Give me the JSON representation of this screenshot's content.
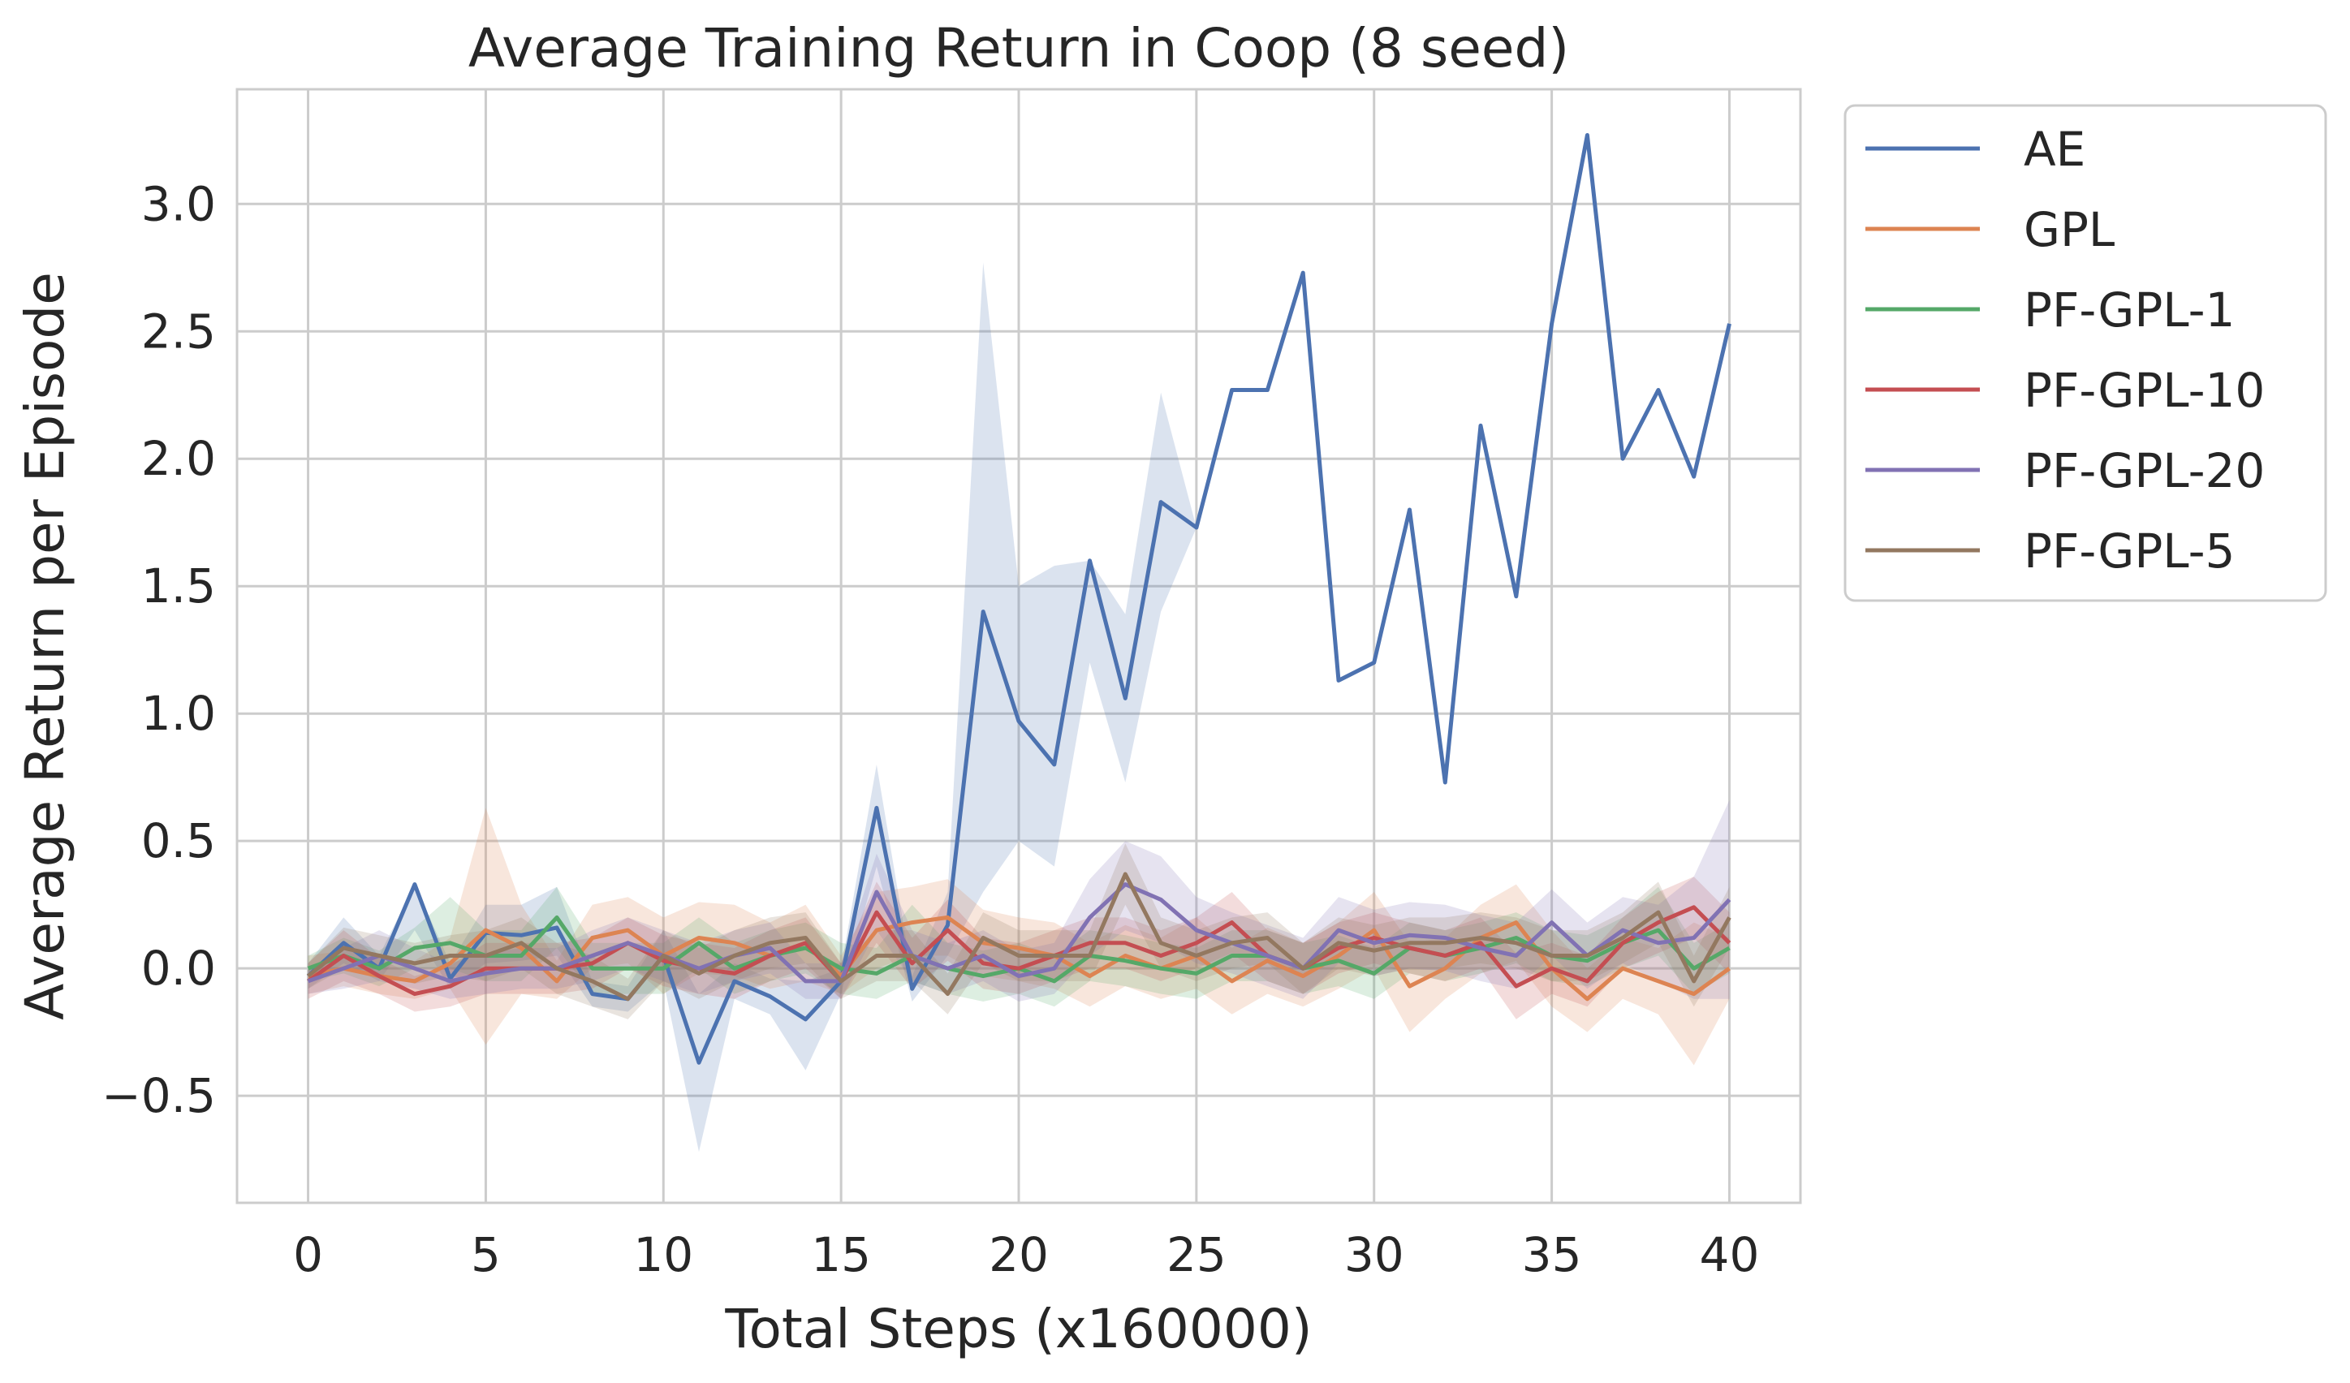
{
  "chart_data": {
    "type": "line",
    "title": "Average Training Return in Coop (8 seed)",
    "xlabel": "Total Steps (x160000)",
    "ylabel": "Average Return per Episode",
    "xlim": [
      -2,
      42
    ],
    "ylim": [
      -0.92,
      3.45
    ],
    "xticks": [
      0,
      5,
      10,
      15,
      20,
      25,
      30,
      35,
      40
    ],
    "xtick_labels": [
      "0",
      "5",
      "10",
      "15",
      "20",
      "25",
      "30",
      "35",
      "40"
    ],
    "yticks": [
      -0.5,
      0.0,
      0.5,
      1.0,
      1.5,
      2.0,
      2.5,
      3.0
    ],
    "ytick_labels": [
      "−0.5",
      "0.0",
      "0.5",
      "1.0",
      "1.5",
      "2.0",
      "2.5",
      "3.0"
    ],
    "grid": true,
    "legend_position": "outside-top-right",
    "x": [
      0,
      1,
      2,
      3,
      4,
      5,
      6,
      7,
      8,
      9,
      10,
      11,
      12,
      13,
      14,
      15,
      16,
      17,
      18,
      19,
      20,
      21,
      22,
      23,
      24,
      25,
      26,
      27,
      28,
      29,
      30,
      31,
      32,
      33,
      34,
      35,
      36,
      37,
      38,
      39,
      40
    ],
    "series": [
      {
        "name": "AE",
        "color": "#4c72b0",
        "values": [
          -0.03,
          0.1,
          0.0,
          0.33,
          -0.04,
          0.14,
          0.13,
          0.16,
          -0.1,
          -0.12,
          0.05,
          -0.37,
          -0.05,
          -0.11,
          -0.2,
          -0.05,
          0.63,
          -0.08,
          0.17,
          1.4,
          0.97,
          0.8,
          1.6,
          1.06,
          1.83,
          1.73,
          2.27,
          2.27,
          2.73,
          1.13,
          1.2,
          1.8,
          0.73,
          2.13,
          1.46,
          2.53,
          3.27,
          2.0,
          2.27,
          1.93,
          2.53
        ],
        "lower": [
          -0.08,
          0.02,
          -0.05,
          0.15,
          -0.08,
          0.02,
          0.03,
          0.05,
          -0.15,
          -0.17,
          -0.05,
          -0.72,
          -0.12,
          -0.18,
          -0.4,
          -0.1,
          0.4,
          -0.13,
          0.05,
          0.3,
          0.5,
          0.4,
          1.2,
          0.73,
          1.4,
          1.73,
          2.27,
          2.27,
          2.73,
          1.13,
          1.2,
          1.8,
          0.73,
          2.13,
          1.46,
          2.53,
          3.27,
          2.0,
          2.27,
          1.93,
          2.53
        ],
        "upper": [
          0.02,
          0.2,
          0.05,
          0.33,
          0.02,
          0.25,
          0.25,
          0.32,
          -0.05,
          -0.07,
          0.15,
          -0.1,
          0.02,
          -0.04,
          -0.05,
          0.0,
          0.8,
          -0.03,
          0.3,
          2.77,
          1.5,
          1.58,
          1.6,
          1.39,
          2.26,
          1.73,
          2.27,
          2.27,
          2.73,
          1.13,
          1.2,
          1.8,
          0.73,
          2.13,
          1.46,
          2.53,
          3.27,
          2.0,
          2.27,
          1.93,
          2.53
        ]
      },
      {
        "name": "GPL",
        "color": "#dd8452",
        "values": [
          -0.03,
          0.0,
          -0.03,
          -0.05,
          0.02,
          0.15,
          0.08,
          -0.05,
          0.12,
          0.15,
          0.05,
          0.12,
          0.1,
          0.05,
          0.1,
          -0.03,
          0.15,
          0.18,
          0.2,
          0.1,
          0.08,
          0.05,
          -0.03,
          0.05,
          0.0,
          0.05,
          -0.05,
          0.03,
          -0.03,
          0.05,
          0.15,
          -0.07,
          0.0,
          0.12,
          0.18,
          0.0,
          -0.12,
          0.0,
          -0.05,
          -0.1,
          0.0
        ],
        "lower": [
          -0.1,
          -0.07,
          -0.1,
          -0.12,
          -0.08,
          -0.3,
          -0.1,
          -0.12,
          0.0,
          0.02,
          -0.1,
          -0.02,
          -0.03,
          -0.08,
          -0.05,
          -0.1,
          0.0,
          0.05,
          0.05,
          -0.03,
          -0.05,
          -0.08,
          -0.15,
          -0.07,
          -0.12,
          -0.08,
          -0.18,
          -0.1,
          -0.15,
          -0.08,
          0.0,
          -0.25,
          -0.12,
          -0.02,
          0.03,
          -0.15,
          -0.25,
          -0.12,
          -0.18,
          -0.38,
          -0.12
        ],
        "upper": [
          0.05,
          0.07,
          0.05,
          0.03,
          0.12,
          0.63,
          0.25,
          0.03,
          0.25,
          0.28,
          0.2,
          0.26,
          0.25,
          0.18,
          0.25,
          0.05,
          0.3,
          0.32,
          0.35,
          0.23,
          0.2,
          0.18,
          0.1,
          0.17,
          0.12,
          0.2,
          0.08,
          0.16,
          0.1,
          0.18,
          0.3,
          0.1,
          0.12,
          0.25,
          0.33,
          0.15,
          0.0,
          0.12,
          0.08,
          0.18,
          0.12
        ]
      },
      {
        "name": "PF-GPL-1",
        "color": "#55a868",
        "values": [
          0.0,
          0.05,
          0.0,
          0.08,
          0.1,
          0.05,
          0.05,
          0.2,
          0.0,
          0.0,
          0.0,
          0.1,
          0.0,
          0.05,
          0.08,
          0.0,
          -0.02,
          0.05,
          0.0,
          -0.03,
          0.0,
          -0.05,
          0.05,
          0.03,
          0.0,
          -0.02,
          0.05,
          0.05,
          0.0,
          0.03,
          -0.02,
          0.08,
          0.05,
          0.08,
          0.12,
          0.05,
          0.03,
          0.1,
          0.15,
          0.0,
          0.08
        ],
        "lower": [
          -0.05,
          -0.02,
          -0.07,
          0.0,
          0.0,
          -0.05,
          -0.05,
          0.08,
          -0.1,
          -0.1,
          -0.1,
          0.0,
          -0.1,
          -0.05,
          -0.02,
          -0.1,
          -0.12,
          -0.05,
          -0.1,
          -0.13,
          -0.1,
          -0.15,
          -0.05,
          -0.07,
          -0.1,
          -0.12,
          -0.05,
          -0.05,
          -0.1,
          -0.07,
          -0.12,
          -0.02,
          -0.05,
          -0.02,
          0.02,
          -0.05,
          -0.07,
          0.0,
          0.05,
          -0.1,
          -0.02
        ],
        "upper": [
          0.05,
          0.12,
          0.07,
          0.16,
          0.28,
          0.15,
          0.15,
          0.32,
          0.1,
          0.1,
          0.1,
          0.2,
          0.1,
          0.15,
          0.18,
          0.1,
          0.08,
          0.25,
          0.1,
          0.07,
          0.1,
          0.05,
          0.15,
          0.13,
          0.1,
          0.08,
          0.15,
          0.15,
          0.1,
          0.13,
          0.08,
          0.18,
          0.15,
          0.18,
          0.22,
          0.15,
          0.13,
          0.2,
          0.32,
          0.1,
          0.18
        ]
      },
      {
        "name": "PF-GPL-10",
        "color": "#c44e52",
        "values": [
          -0.05,
          0.05,
          -0.03,
          -0.1,
          -0.07,
          0.0,
          0.0,
          0.0,
          0.02,
          0.1,
          0.03,
          0.0,
          -0.02,
          0.05,
          0.1,
          -0.05,
          0.22,
          0.02,
          0.15,
          0.02,
          0.0,
          0.05,
          0.1,
          0.1,
          0.05,
          0.1,
          0.18,
          0.05,
          0.0,
          0.08,
          0.12,
          0.08,
          0.05,
          0.1,
          -0.07,
          0.0,
          -0.05,
          0.1,
          0.18,
          0.24,
          0.1
        ],
        "lower": [
          -0.12,
          -0.05,
          -0.1,
          -0.17,
          -0.15,
          -0.1,
          -0.1,
          -0.1,
          -0.08,
          0.0,
          -0.07,
          -0.1,
          -0.12,
          -0.05,
          0.0,
          -0.12,
          0.1,
          -0.08,
          0.03,
          -0.08,
          -0.1,
          -0.05,
          0.0,
          0.0,
          -0.05,
          0.0,
          0.06,
          -0.05,
          -0.1,
          -0.02,
          0.02,
          -0.02,
          -0.05,
          0.0,
          -0.2,
          -0.1,
          -0.15,
          0.0,
          0.06,
          0.12,
          -0.02
        ],
        "upper": [
          0.02,
          0.15,
          0.04,
          -0.03,
          0.01,
          0.1,
          0.1,
          0.1,
          0.12,
          0.2,
          0.13,
          0.1,
          0.08,
          0.15,
          0.2,
          0.02,
          0.34,
          0.12,
          0.27,
          0.12,
          0.1,
          0.15,
          0.2,
          0.2,
          0.15,
          0.2,
          0.3,
          0.15,
          0.1,
          0.18,
          0.22,
          0.18,
          0.15,
          0.2,
          0.06,
          0.1,
          0.05,
          0.2,
          0.3,
          0.36,
          0.22
        ]
      },
      {
        "name": "PF-GPL-20",
        "color": "#8172b3",
        "values": [
          -0.05,
          0.0,
          0.05,
          0.0,
          -0.05,
          -0.02,
          0.0,
          0.0,
          0.05,
          0.1,
          0.05,
          0.0,
          0.05,
          0.08,
          -0.05,
          -0.05,
          0.3,
          0.05,
          0.0,
          0.05,
          -0.03,
          0.0,
          0.2,
          0.33,
          0.27,
          0.15,
          0.1,
          0.05,
          0.0,
          0.15,
          0.1,
          0.13,
          0.12,
          0.08,
          0.05,
          0.18,
          0.05,
          0.15,
          0.1,
          0.12,
          0.27
        ],
        "lower": [
          -0.1,
          -0.08,
          -0.05,
          -0.08,
          -0.12,
          -0.1,
          -0.08,
          -0.08,
          -0.05,
          0.0,
          -0.05,
          -0.1,
          -0.05,
          -0.02,
          -0.12,
          -0.12,
          0.15,
          -0.05,
          -0.1,
          -0.05,
          -0.13,
          -0.1,
          0.05,
          0.15,
          0.1,
          0.02,
          -0.02,
          -0.07,
          -0.12,
          0.02,
          -0.03,
          0.0,
          -0.01,
          -0.05,
          -0.08,
          0.05,
          -0.08,
          0.02,
          -0.05,
          -0.12,
          -0.12
        ],
        "upper": [
          0.0,
          0.08,
          0.15,
          0.08,
          0.02,
          0.06,
          0.08,
          0.08,
          0.15,
          0.2,
          0.15,
          0.1,
          0.15,
          0.18,
          0.02,
          0.02,
          0.45,
          0.15,
          0.1,
          0.15,
          0.07,
          0.1,
          0.35,
          0.5,
          0.44,
          0.28,
          0.22,
          0.17,
          0.12,
          0.28,
          0.23,
          0.26,
          0.25,
          0.21,
          0.18,
          0.31,
          0.18,
          0.28,
          0.25,
          0.36,
          0.66
        ]
      },
      {
        "name": "PF-GPL-5",
        "color": "#937860",
        "values": [
          -0.03,
          0.08,
          0.05,
          0.02,
          0.05,
          0.05,
          0.1,
          0.0,
          -0.05,
          -0.12,
          0.05,
          -0.02,
          0.05,
          0.1,
          0.12,
          -0.05,
          0.05,
          0.05,
          -0.1,
          0.12,
          0.05,
          0.05,
          0.05,
          0.37,
          0.1,
          0.05,
          0.1,
          0.12,
          0.0,
          0.1,
          0.07,
          0.1,
          0.1,
          0.12,
          0.1,
          0.05,
          0.05,
          0.12,
          0.22,
          -0.05,
          0.2
        ],
        "lower": [
          -0.08,
          0.0,
          -0.03,
          -0.06,
          -0.03,
          -0.05,
          0.0,
          -0.1,
          -0.15,
          -0.2,
          -0.05,
          -0.12,
          -0.05,
          0.0,
          0.02,
          -0.12,
          -0.05,
          -0.05,
          -0.18,
          0.02,
          -0.05,
          -0.05,
          -0.05,
          0.25,
          0.0,
          -0.05,
          0.0,
          0.02,
          -0.1,
          0.0,
          -0.03,
          0.0,
          0.0,
          0.02,
          0.0,
          -0.05,
          -0.05,
          0.02,
          0.1,
          -0.15,
          0.08
        ],
        "upper": [
          0.02,
          0.16,
          0.13,
          0.1,
          0.13,
          0.15,
          0.2,
          0.1,
          0.05,
          -0.04,
          0.15,
          0.08,
          0.15,
          0.2,
          0.22,
          0.02,
          0.15,
          0.15,
          -0.02,
          0.22,
          0.15,
          0.15,
          0.15,
          0.49,
          0.2,
          0.15,
          0.2,
          0.22,
          0.1,
          0.2,
          0.17,
          0.2,
          0.2,
          0.22,
          0.2,
          0.15,
          0.15,
          0.22,
          0.34,
          0.05,
          0.32
        ]
      }
    ]
  }
}
